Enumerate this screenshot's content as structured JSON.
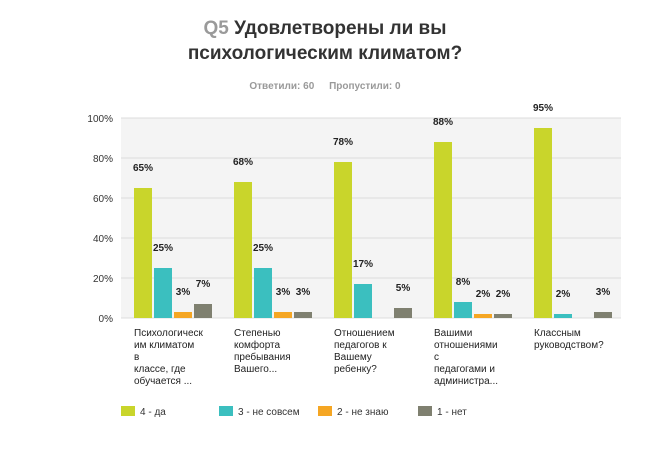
{
  "header": {
    "qnum": "Q5",
    "title_line1": "Удовлетворены ли вы",
    "title_line2": "психологическим климатом?",
    "answered": "Ответили: 60",
    "skipped": "Пропустили: 0"
  },
  "chart_data": {
    "type": "bar",
    "categories": [
      [
        "Психологическ",
        "им климатом",
        "в",
        "классе, где",
        "обучается ..."
      ],
      [
        "Степенью",
        "комфорта",
        "пребывания",
        "Вашего..."
      ],
      [
        "Отношением",
        "педагогов к",
        "Вашему",
        "ребенку?"
      ],
      [
        "Вашими",
        "отношениями",
        "с",
        "педагогами и",
        "администра..."
      ],
      [
        "Классным",
        "руководством?"
      ]
    ],
    "series": [
      {
        "name": "4 - да",
        "color": "#c9d52b",
        "values": [
          65,
          68,
          78,
          88,
          95
        ],
        "labels": [
          "65%",
          "68%",
          "78%",
          "88%",
          "95%"
        ]
      },
      {
        "name": "3 - не совсем",
        "color": "#3bbfbf",
        "values": [
          25,
          25,
          17,
          8,
          2
        ],
        "labels": [
          "25%",
          "25%",
          "17%",
          "8%",
          "2%"
        ]
      },
      {
        "name": "2 - не знаю",
        "color": "#f5a623",
        "values": [
          3,
          3,
          0,
          2,
          0
        ],
        "labels": [
          "3%",
          "3%",
          "",
          "2%",
          ""
        ]
      },
      {
        "name": "1 - нет",
        "color": "#7f8070",
        "values": [
          7,
          3,
          5,
          2,
          3
        ],
        "labels": [
          "7%",
          "3%",
          "5%",
          "2%",
          "3%"
        ]
      }
    ],
    "yticks": [
      "0%",
      "20%",
      "40%",
      "60%",
      "80%",
      "100%"
    ],
    "ylim": [
      0,
      100
    ],
    "grid": true,
    "legend": "bottom"
  }
}
